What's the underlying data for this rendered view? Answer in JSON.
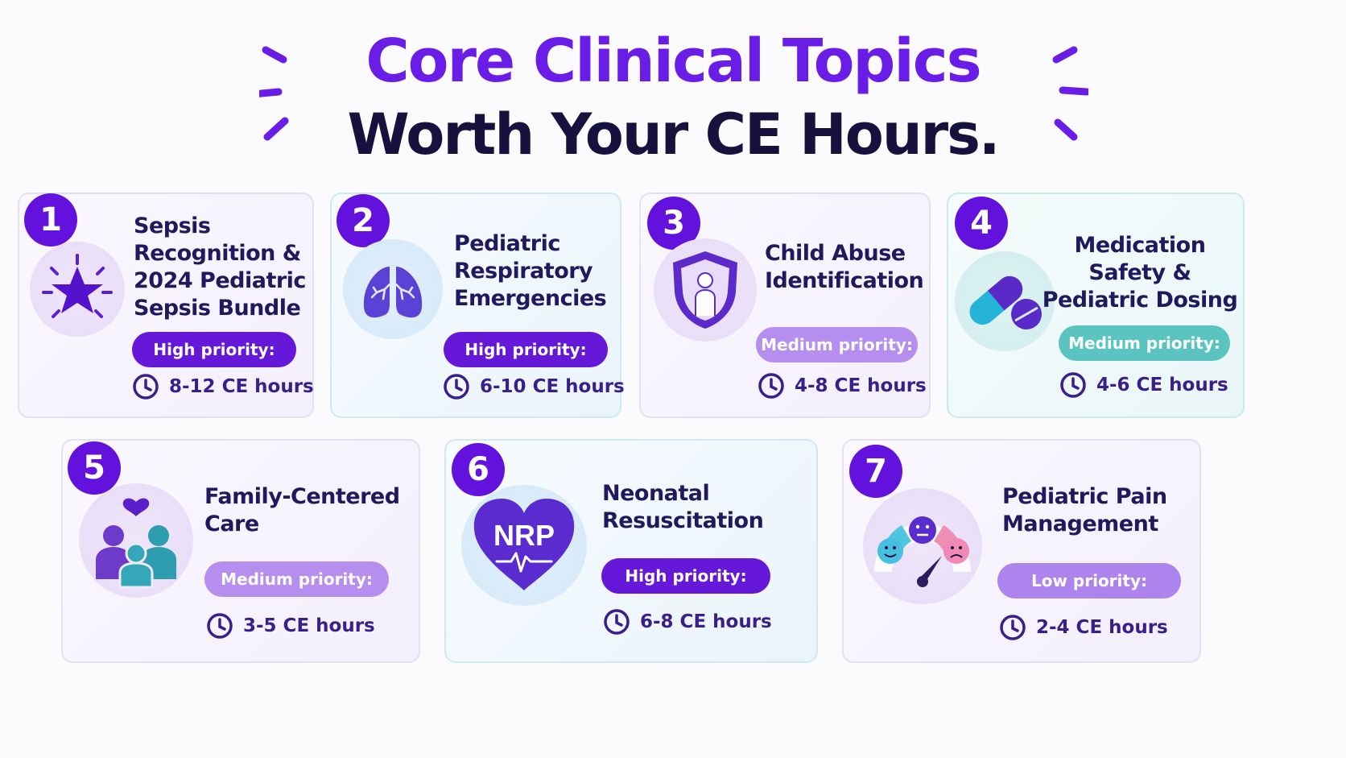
{
  "header": {
    "line1": "Core Clinical Topics",
    "line2": "Worth Your CE Hours."
  },
  "colors": {
    "accent": "#6212dc",
    "navy": "#17123d",
    "high_priority": "#6618d8",
    "medium_priority": "#b68ef0",
    "medium_priority_teal": "#5bc4c0",
    "low_priority": "#ad83ee"
  },
  "topics": [
    {
      "number": "1",
      "title_lines": [
        "Sepsis",
        "Recognition &",
        "2024 Pediatric",
        "Sepsis Bundle"
      ],
      "priority": "High priority:",
      "hours": "8-12 CE hours",
      "icon": "star-burst-icon"
    },
    {
      "number": "2",
      "title_lines": [
        "Pediatric",
        "Respiratory",
        "Emergencies"
      ],
      "priority": "High priority:",
      "hours": "6-10 CE hours",
      "icon": "lungs-icon"
    },
    {
      "number": "3",
      "title_lines": [
        "Child Abuse",
        "Identification"
      ],
      "priority": "Medium priority:",
      "hours": "4-8 CE hours",
      "icon": "shield-child-icon"
    },
    {
      "number": "4",
      "title_lines": [
        "Medication Safety &",
        "Pediatric Dosing"
      ],
      "priority": "Medium priority:",
      "hours": "4-6 CE hours",
      "icon": "pill-capsule-icon"
    },
    {
      "number": "5",
      "title_lines": [
        "Family-Centered",
        "Care"
      ],
      "priority": "Medium priority:",
      "hours": "3-5 CE hours",
      "icon": "family-heart-icon"
    },
    {
      "number": "6",
      "title_lines": [
        "Neonatal",
        "Resuscitation"
      ],
      "priority": "High priority:",
      "hours": "6-8 CE hours",
      "icon": "heart-nrp-icon",
      "icon_text": "NRP"
    },
    {
      "number": "7",
      "title_lines": [
        "Pediatric Pain",
        "Management"
      ],
      "priority": "Low priority:",
      "hours": "2-4 CE hours",
      "icon": "pain-scale-gauge-icon"
    }
  ]
}
